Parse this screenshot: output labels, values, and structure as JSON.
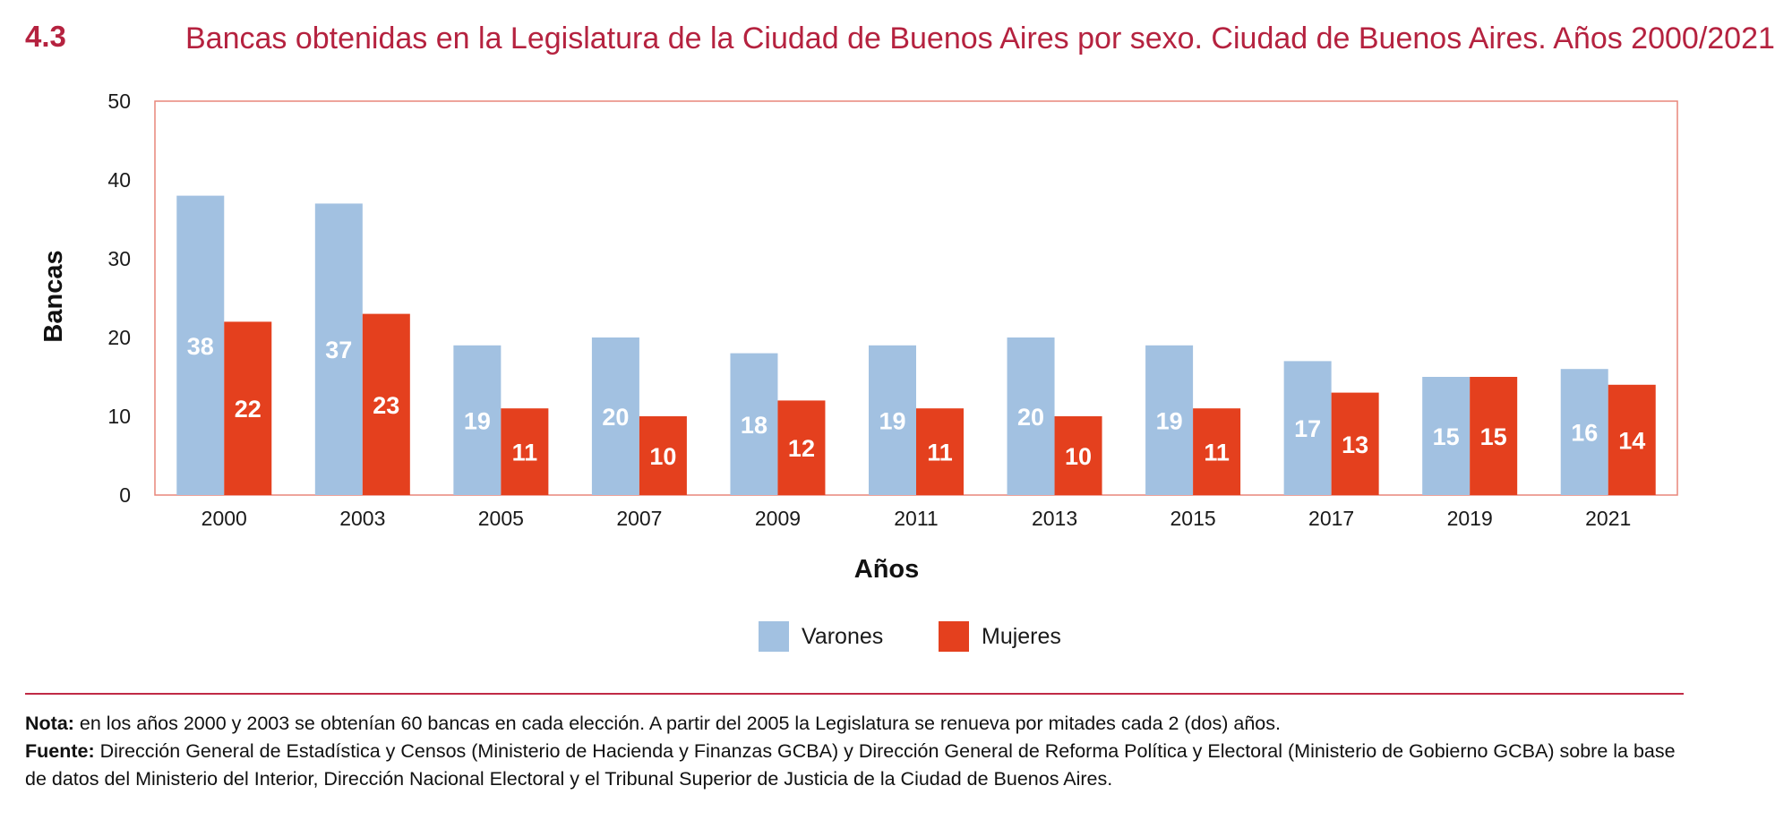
{
  "figure": {
    "number": "4.3",
    "title": "Bancas obtenidas en la Legislatura de la Ciudad de Buenos Aires por sexo. Ciudad de Buenos Aires. Años 2000/2021"
  },
  "chart_data": {
    "type": "bar",
    "title": "Bancas obtenidas en la Legislatura de la Ciudad de Buenos Aires por sexo. Ciudad de Buenos Aires. Años 2000/2021",
    "xlabel": "Años",
    "ylabel": "Bancas",
    "ylim": [
      0,
      50
    ],
    "yticks": [
      0,
      10,
      20,
      30,
      40,
      50
    ],
    "categories": [
      "2000",
      "2003",
      "2005",
      "2007",
      "2009",
      "2011",
      "2013",
      "2015",
      "2017",
      "2019",
      "2021"
    ],
    "series": [
      {
        "name": "Varones",
        "color": "#a2c1e1",
        "values": [
          38,
          37,
          19,
          20,
          18,
          19,
          20,
          19,
          17,
          15,
          16
        ]
      },
      {
        "name": "Mujeres",
        "color": "#e4401e",
        "values": [
          22,
          23,
          11,
          10,
          12,
          11,
          10,
          11,
          13,
          15,
          14
        ]
      }
    ],
    "legend_position": "bottom-center",
    "frame_color": "#e9867a"
  },
  "notes": {
    "nota_label": "Nota:",
    "nota_text": " en los años 2000 y 2003 se obtenían 60 bancas en cada elección. A partir del 2005 la Legislatura se renueva por mitades cada 2 (dos) años.",
    "fuente_label": "Fuente:",
    "fuente_text": " Dirección General de Estadística y Censos (Ministerio de Hacienda y Finanzas GCBA) y Dirección General de Reforma Política y Electoral (Ministerio de Gobierno GCBA) sobre la base de datos del Ministerio del Interior, Dirección Nacional Electoral y el Tribunal Superior de Justicia de la Ciudad de Buenos Aires."
  }
}
